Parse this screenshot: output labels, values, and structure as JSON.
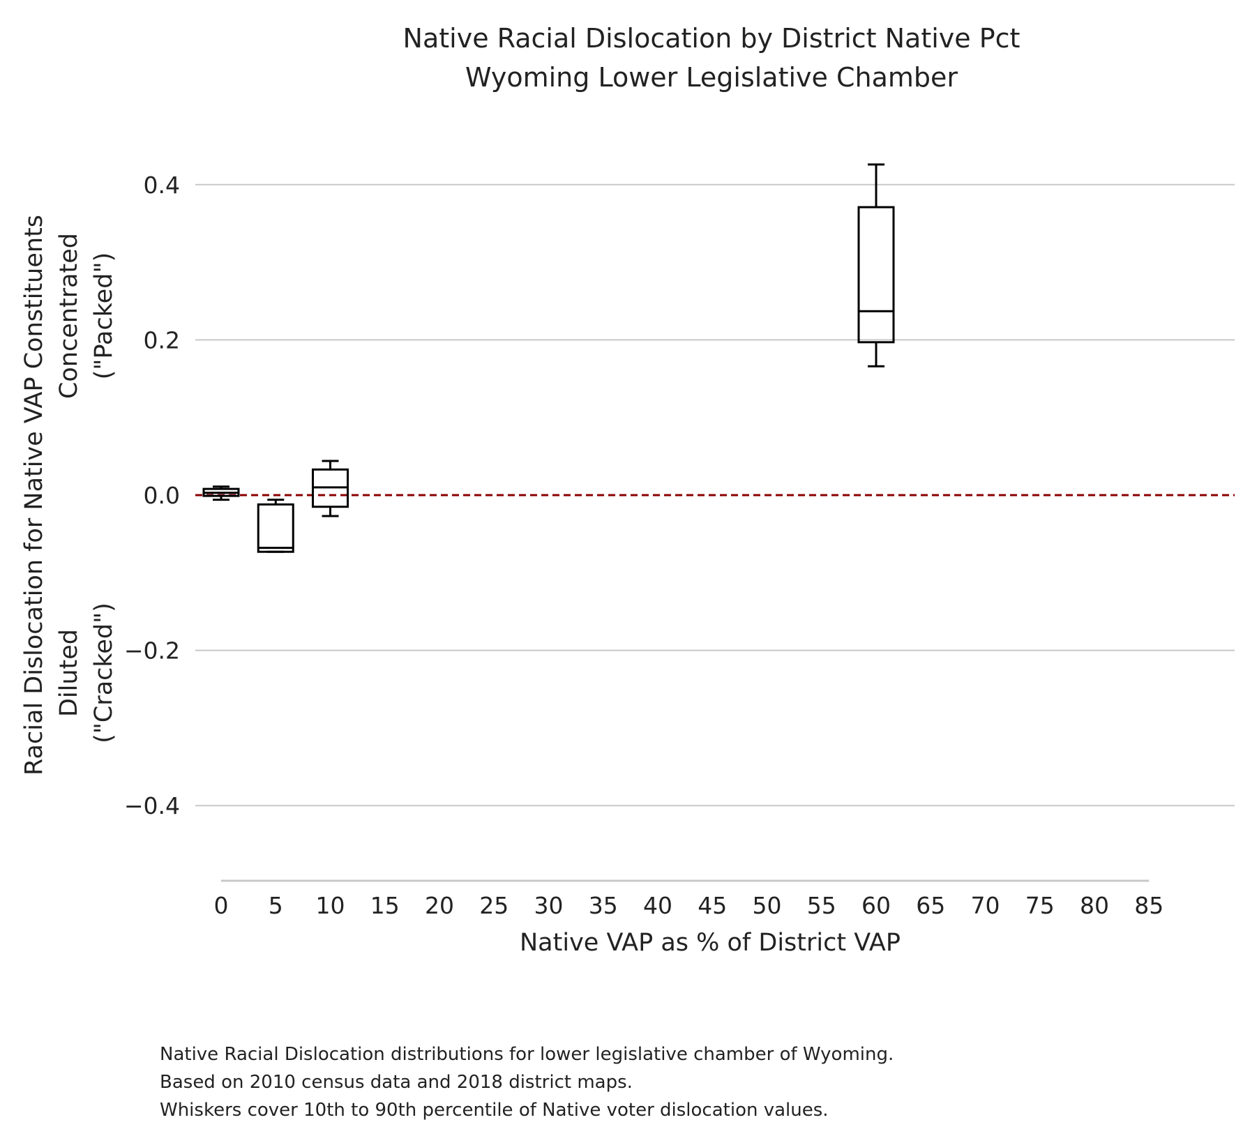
{
  "chart_data": {
    "type": "box",
    "title": [
      "Native Racial Dislocation by District Native Pct",
      "Wyoming Lower Legislative Chamber"
    ],
    "xlabel": "Native VAP as % of District VAP",
    "ylabel": [
      "Racial Dislocation for Native VAP Constituents",
      "Concentrated",
      "(\"Packed\")",
      "Diluted",
      "(\"Cracked\")"
    ],
    "x_ticks": [
      "0",
      "5",
      "10",
      "15",
      "20",
      "25",
      "30",
      "35",
      "40",
      "45",
      "50",
      "55",
      "60",
      "65",
      "70",
      "75",
      "80",
      "85"
    ],
    "y_ticks": [
      "0.4",
      "0.2",
      "0.0",
      "−0.2",
      "−0.4"
    ],
    "xlim": [
      0,
      85
    ],
    "ylim": [
      -0.5,
      0.45
    ],
    "y_gridlines": [
      0.4,
      0.2,
      0.0,
      -0.2,
      -0.4
    ],
    "reference_line": {
      "y": 0.0,
      "color": "#8b0000",
      "style": "dashed"
    },
    "boxes": [
      {
        "x": 0,
        "whisker_low": -0.006,
        "q1": -0.001,
        "median": 0.003,
        "q3": 0.008,
        "whisker_high": 0.011
      },
      {
        "x": 5,
        "whisker_low": -0.073,
        "q1": -0.073,
        "median": -0.068,
        "q3": -0.012,
        "whisker_high": -0.006
      },
      {
        "x": 10,
        "whisker_low": -0.027,
        "q1": -0.015,
        "median": 0.01,
        "q3": 0.033,
        "whisker_high": 0.044
      },
      {
        "x": 60,
        "whisker_low": 0.166,
        "q1": 0.197,
        "median": 0.237,
        "q3": 0.371,
        "whisker_high": 0.426
      }
    ],
    "grid": true
  },
  "caption": [
    "Native Racial Dislocation distributions for lower legislative chamber of Wyoming.",
    "Based on 2010 census data and 2018 district maps.",
    "Whiskers cover 10th to 90th percentile of Native voter dislocation values."
  ],
  "colors": {
    "reference_line": "#8b0000",
    "grid": "#c8c8c8",
    "box": "#000000",
    "text": "#222222"
  }
}
